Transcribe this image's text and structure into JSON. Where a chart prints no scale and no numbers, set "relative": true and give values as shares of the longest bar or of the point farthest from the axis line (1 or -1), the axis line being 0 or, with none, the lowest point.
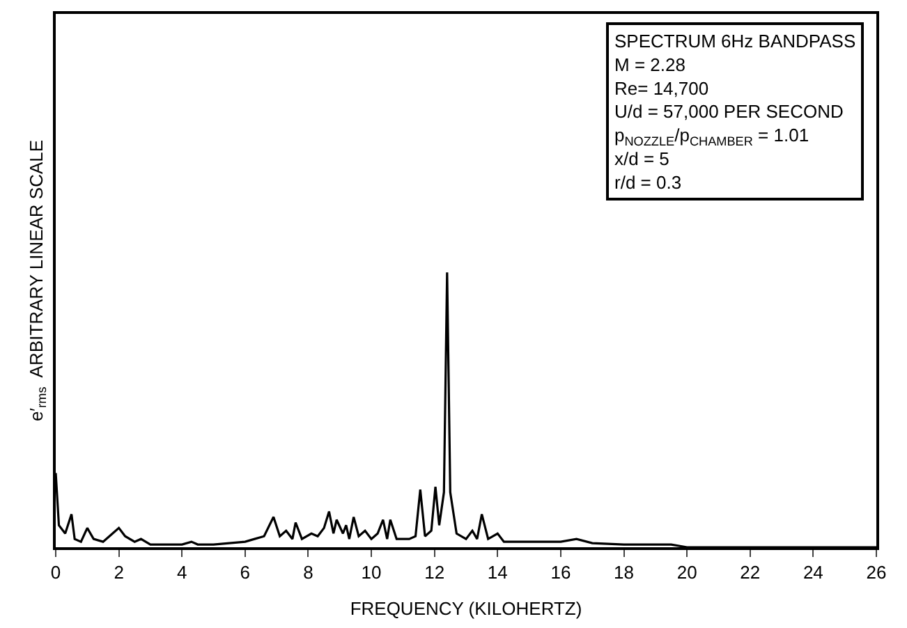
{
  "chart_data": {
    "type": "line",
    "relative": true,
    "xlabel": "FREQUENCY (KILOHERTZ)",
    "ylabel": "e′$_{rms}$  ARBITRARY LINEAR SCALE",
    "x": [
      0,
      0.1,
      0.3,
      0.5,
      0.6,
      0.8,
      1.0,
      1.2,
      1.5,
      1.8,
      2.0,
      2.2,
      2.5,
      2.7,
      3.0,
      3.5,
      4.0,
      4.3,
      4.5,
      5.0,
      5.5,
      6.0,
      6.3,
      6.6,
      6.9,
      7.1,
      7.3,
      7.5,
      7.6,
      7.8,
      8.1,
      8.3,
      8.5,
      8.66,
      8.8,
      8.9,
      9.1,
      9.2,
      9.3,
      9.44,
      9.6,
      9.8,
      10.0,
      10.2,
      10.37,
      10.5,
      10.6,
      10.8,
      11.2,
      11.4,
      11.55,
      11.7,
      11.9,
      12.03,
      12.15,
      12.3,
      12.4,
      12.5,
      12.7,
      13.0,
      13.2,
      13.35,
      13.5,
      13.7,
      14.0,
      14.2,
      15.0,
      16.0,
      16.5,
      17.0,
      18.0,
      19.5,
      20.0,
      26.0
    ],
    "values": [
      0.27,
      0.08,
      0.05,
      0.12,
      0.03,
      0.02,
      0.07,
      0.03,
      0.02,
      0.05,
      0.07,
      0.04,
      0.02,
      0.03,
      0.01,
      0.01,
      0.01,
      0.02,
      0.01,
      0.01,
      0.015,
      0.02,
      0.03,
      0.04,
      0.11,
      0.04,
      0.06,
      0.03,
      0.09,
      0.03,
      0.05,
      0.04,
      0.07,
      0.13,
      0.05,
      0.1,
      0.05,
      0.08,
      0.03,
      0.11,
      0.04,
      0.06,
      0.03,
      0.05,
      0.1,
      0.03,
      0.1,
      0.03,
      0.03,
      0.04,
      0.21,
      0.04,
      0.06,
      0.22,
      0.08,
      0.2,
      1.0,
      0.2,
      0.05,
      0.03,
      0.06,
      0.03,
      0.12,
      0.03,
      0.05,
      0.02,
      0.02,
      0.02,
      0.03,
      0.015,
      0.01,
      0.01,
      0,
      0
    ],
    "color": "#000000",
    "xlim": [
      0,
      26
    ],
    "xticks": [
      0,
      2,
      4,
      6,
      8,
      10,
      12,
      14,
      16,
      18,
      20,
      22,
      24,
      26
    ],
    "legend": false,
    "marker": "none",
    "line_style": "solid",
    "annotations": [
      "SPECTRUM 6Hz BANDPASS",
      "M = 2.28",
      "Re= 14,700",
      "U/d = 57,000 PER SECOND",
      "p$_{NOZZLE}$/p$_{CHAMBER}$ = 1.01",
      "x/d = 5",
      "r/d = 0.3"
    ]
  }
}
